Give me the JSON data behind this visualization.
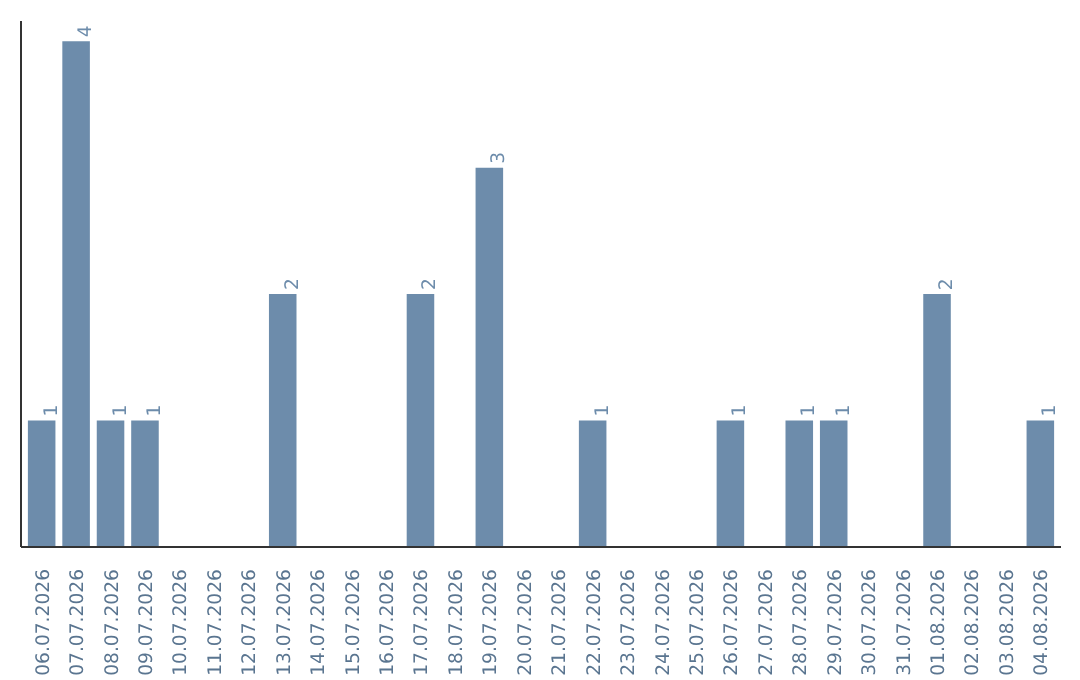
{
  "chart_data": {
    "type": "bar",
    "categories": [
      "06.07.2026",
      "07.07.2026",
      "08.07.2026",
      "09.07.2026",
      "10.07.2026",
      "11.07.2026",
      "12.07.2026",
      "13.07.2026",
      "14.07.2026",
      "15.07.2026",
      "16.07.2026",
      "17.07.2026",
      "18.07.2026",
      "19.07.2026",
      "20.07.2026",
      "21.07.2026",
      "22.07.2026",
      "23.07.2026",
      "24.07.2026",
      "25.07.2026",
      "26.07.2026",
      "27.07.2026",
      "28.07.2026",
      "29.07.2026",
      "30.07.2026",
      "31.07.2026",
      "01.08.2026",
      "02.08.2026",
      "03.08.2026",
      "04.08.2026"
    ],
    "values": [
      1,
      4,
      1,
      1,
      0,
      0,
      0,
      2,
      0,
      0,
      0,
      2,
      0,
      3,
      0,
      0,
      1,
      0,
      0,
      0,
      1,
      0,
      1,
      1,
      0,
      0,
      2,
      0,
      0,
      1
    ],
    "color": "#6d8cab",
    "value_labels": [
      "1",
      "4",
      "1",
      "1",
      null,
      null,
      null,
      "2",
      null,
      null,
      null,
      "2",
      null,
      "3",
      null,
      null,
      "1",
      null,
      null,
      null,
      "1",
      null,
      "1",
      "1",
      null,
      null,
      "2",
      null,
      null,
      "1"
    ],
    "tick_labels": "x",
    "grid": false
  }
}
